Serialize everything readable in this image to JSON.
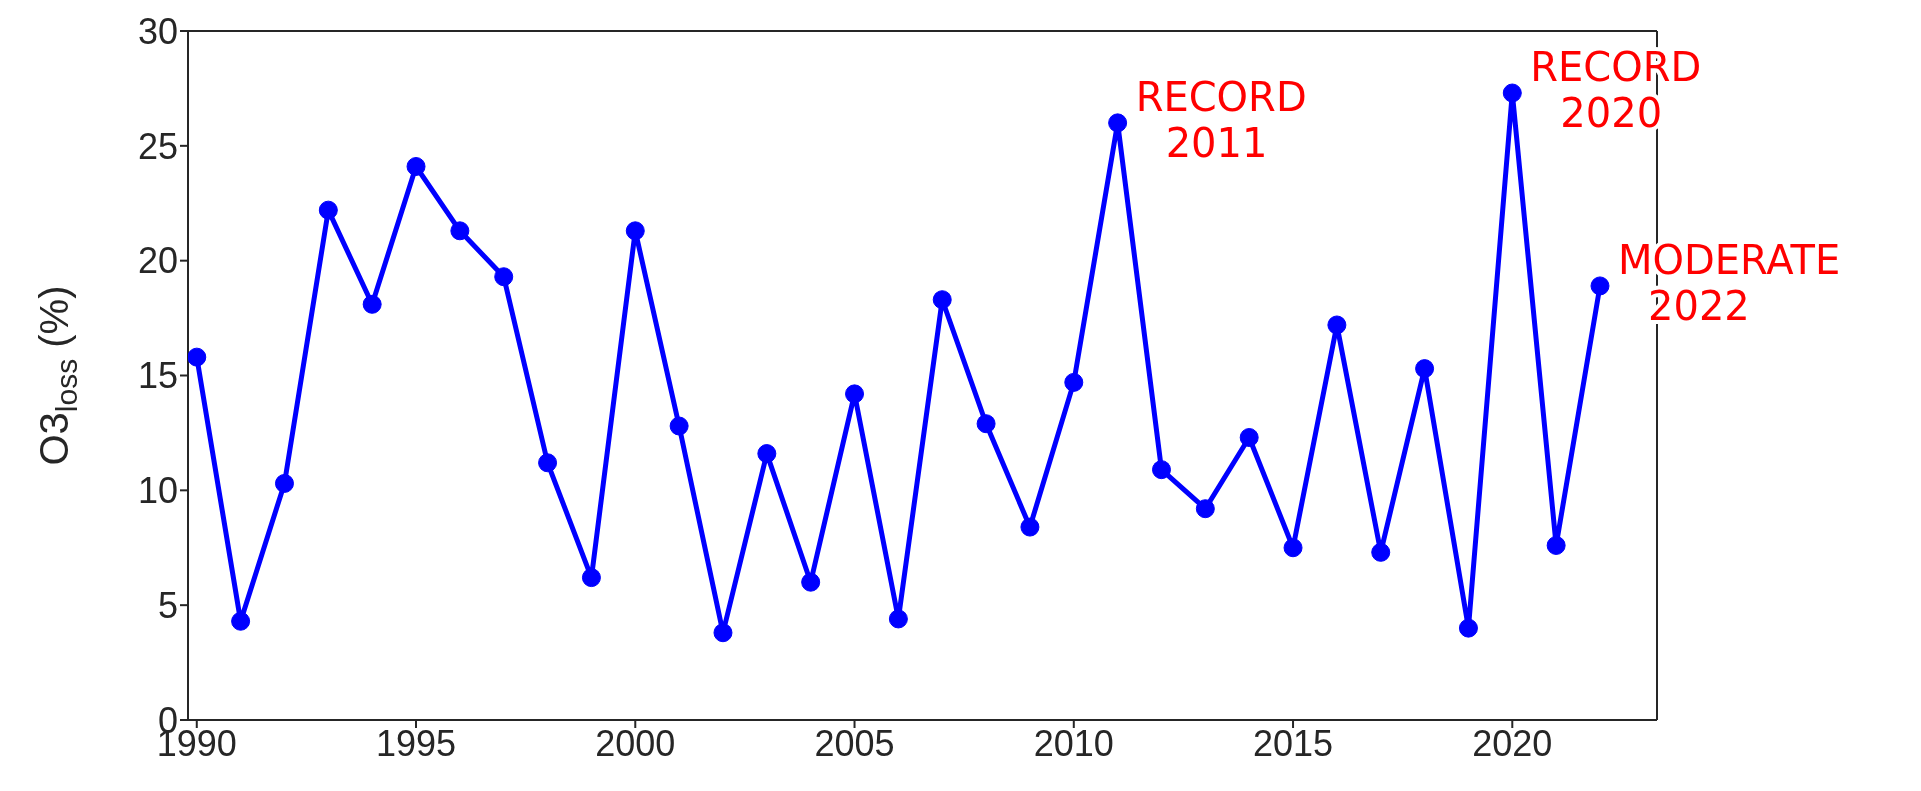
{
  "chart_data": {
    "type": "line",
    "ylabel": "O3$_{loss}$ (%)",
    "x": [
      1990,
      1991,
      1992,
      1993,
      1994,
      1995,
      1996,
      1997,
      1998,
      1999,
      2000,
      2001,
      2002,
      2003,
      2004,
      2005,
      2006,
      2007,
      2008,
      2009,
      2010,
      2011,
      2012,
      2013,
      2014,
      2015,
      2016,
      2017,
      2018,
      2019,
      2020,
      2021,
      2022
    ],
    "series": [
      {
        "color": "#0000ff",
        "values": [
          15.8,
          4.3,
          10.3,
          22.2,
          18.1,
          24.1,
          21.3,
          19.3,
          11.2,
          6.2,
          21.3,
          12.8,
          3.8,
          11.6,
          6.0,
          14.2,
          4.4,
          18.3,
          12.9,
          8.4,
          14.7,
          26.0,
          10.9,
          9.2,
          12.3,
          7.5,
          17.2,
          7.3,
          15.3,
          4.0,
          27.3,
          7.6,
          18.9
        ]
      }
    ],
    "xlim": [
      1989.8,
      2023.3
    ],
    "xticks": [
      1990,
      1995,
      2000,
      2005,
      2010,
      2015,
      2020
    ],
    "ylim": [
      0,
      30
    ],
    "yticks": [
      0,
      5,
      10,
      15,
      20,
      25,
      30
    ],
    "grid": false,
    "marker": "circle",
    "line_style": "solid",
    "annotations": [
      {
        "text": "RECORD 2011",
        "x": 2011,
        "y": 26.0
      },
      {
        "text": "RECORD 2020",
        "x": 2020,
        "y": 27.3
      },
      {
        "text": "MODERATE 2022",
        "x": 2022,
        "y": 18.9
      }
    ]
  }
}
